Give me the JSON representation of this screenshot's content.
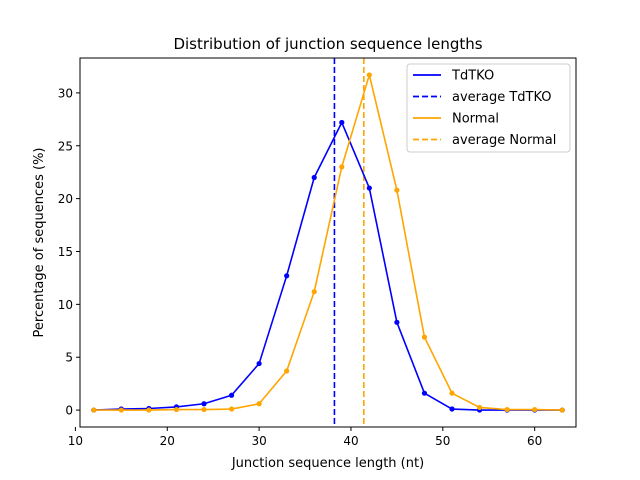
{
  "chart_data": {
    "type": "line",
    "title": "Distribution of junction sequence lengths",
    "xlabel": "Junction sequence length (nt)",
    "ylabel": "Percentage of sequences (%)",
    "xlim": [
      10.5,
      64.5
    ],
    "ylim": [
      -1.6,
      33.3
    ],
    "xticks": [
      10,
      20,
      30,
      40,
      50,
      60
    ],
    "yticks": [
      0,
      5,
      10,
      15,
      20,
      25,
      30
    ],
    "grid": false,
    "legend_position": "top-right",
    "x": [
      12,
      15,
      18,
      21,
      24,
      27,
      30,
      33,
      36,
      39,
      42,
      45,
      48,
      51,
      54,
      57,
      60,
      63
    ],
    "series": [
      {
        "name": "TdTKO",
        "color": "#0000ff",
        "values": [
          0.0,
          0.1,
          0.15,
          0.3,
          0.6,
          1.4,
          4.4,
          12.7,
          22.0,
          27.2,
          21.0,
          8.3,
          1.6,
          0.1,
          0.0,
          0.0,
          0.0,
          0.0
        ]
      },
      {
        "name": "Normal",
        "color": "#ffa500",
        "values": [
          0.0,
          0.0,
          0.0,
          0.05,
          0.05,
          0.1,
          0.6,
          3.7,
          11.2,
          23.0,
          31.7,
          20.8,
          6.9,
          1.6,
          0.25,
          0.05,
          0.05,
          0.0
        ]
      }
    ],
    "averages": [
      {
        "name": "average TdTKO",
        "color": "#0000ff",
        "x": 38.2
      },
      {
        "name": "average Normal",
        "color": "#ffa500",
        "x": 41.4
      }
    ]
  }
}
